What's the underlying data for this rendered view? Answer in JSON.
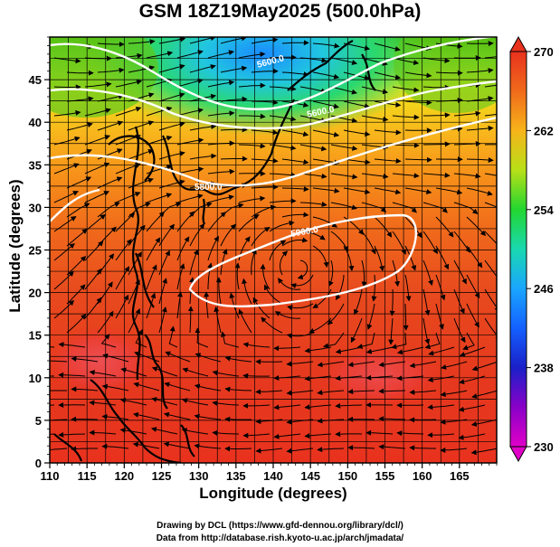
{
  "title": "GSM 18Z19May2025 (500.0hPa)",
  "axes": {
    "xlabel": "Longitude (degrees)",
    "ylabel": "Latitude  (degrees)",
    "xticks": [
      "110",
      "115",
      "120",
      "125",
      "130",
      "135",
      "140",
      "145",
      "150",
      "155",
      "160",
      "165"
    ],
    "yticks": [
      "0",
      "5",
      "10",
      "15",
      "20",
      "25",
      "30",
      "35",
      "40",
      "45"
    ],
    "xlim": [
      110,
      170
    ],
    "ylim": [
      0,
      50
    ]
  },
  "colorbar": {
    "ticks": [
      "230",
      "238",
      "246",
      "254",
      "262",
      "270"
    ],
    "range": [
      230,
      270
    ]
  },
  "contours": [
    {
      "label": "5600.0"
    },
    {
      "label": "5600.0"
    },
    {
      "label": "5800.0"
    },
    {
      "label": "5900.0"
    }
  ],
  "credits": {
    "line1": "Drawing by DCL (https://www.gfd-dennou.org/library/dcl/)",
    "line2": "Data from http://database.rish.kyoto-u.ac.jp/arch/jmadata/"
  },
  "colors": {
    "field_low": "#8a00c8",
    "field_mid": "#2aa6ff",
    "field_green": "#2bd64a",
    "field_yellow": "#e8e417",
    "field_orange": "#f7921a",
    "field_red": "#e8321e",
    "contour": "#ffffff",
    "streamline": "#000000"
  }
}
